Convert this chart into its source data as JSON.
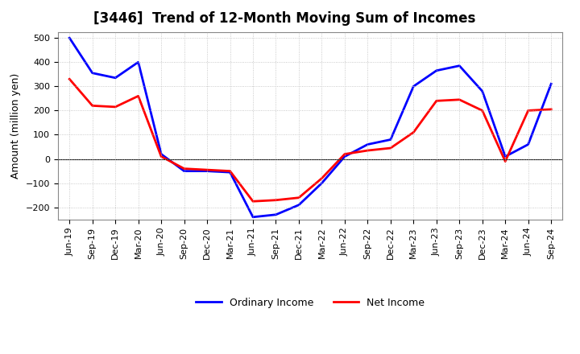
{
  "title": "[3446]  Trend of 12-Month Moving Sum of Incomes",
  "ylabel": "Amount (million yen)",
  "xlabels": [
    "Jun-19",
    "Sep-19",
    "Dec-19",
    "Mar-20",
    "Jun-20",
    "Sep-20",
    "Dec-20",
    "Mar-21",
    "Jun-21",
    "Sep-21",
    "Dec-21",
    "Mar-22",
    "Jun-22",
    "Sep-22",
    "Dec-22",
    "Mar-23",
    "Jun-23",
    "Sep-23",
    "Dec-23",
    "Mar-24",
    "Jun-24",
    "Sep-24"
  ],
  "ordinary_income": [
    500,
    355,
    335,
    400,
    20,
    -50,
    -50,
    -55,
    -240,
    -230,
    -190,
    -100,
    10,
    60,
    80,
    300,
    365,
    385,
    280,
    10,
    60,
    310
  ],
  "net_income": [
    330,
    220,
    215,
    260,
    10,
    -40,
    -45,
    -50,
    -175,
    -170,
    -160,
    -80,
    20,
    35,
    45,
    110,
    240,
    245,
    200,
    -10,
    200,
    205
  ],
  "ordinary_color": "#0000ff",
  "net_color": "#ff0000",
  "ylim": [
    -250,
    525
  ],
  "yticks": [
    -200,
    -100,
    0,
    100,
    200,
    300,
    400,
    500
  ],
  "bg_color": "#ffffff",
  "plot_bg_color": "#ffffff",
  "grid_color": "#bbbbbb",
  "title_fontsize": 12,
  "axis_label_fontsize": 9,
  "tick_fontsize": 8,
  "line_width": 2.0,
  "legend_fontsize": 9
}
